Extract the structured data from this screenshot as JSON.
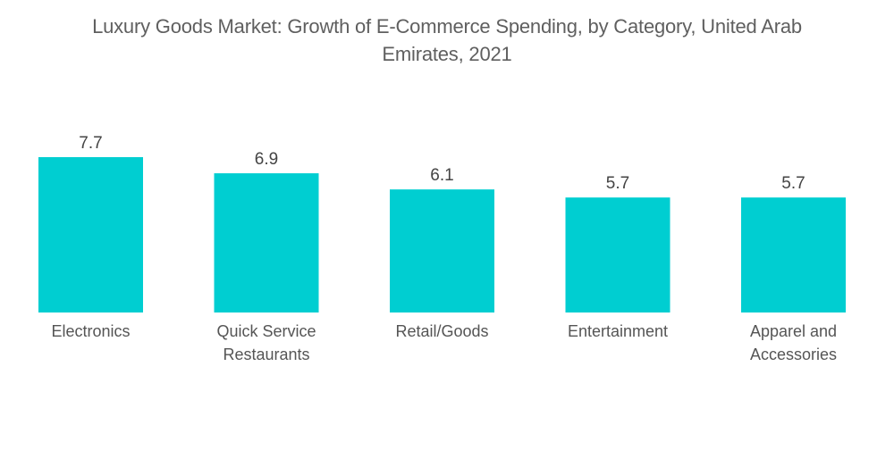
{
  "chart_data": {
    "type": "bar",
    "title": "Luxury Goods Market: Growth of E-Commerce Spending, by Category, United Arab Emirates, 2021",
    "title_lines": [
      "Luxury Goods Market: Growth of E-Commerce Spending, by Category, United Arab",
      "Emirates, 2021"
    ],
    "categories": [
      "Electronics",
      "Quick Service Restaurants",
      "Retail/Goods",
      "Entertainment",
      "Apparel and Accessories"
    ],
    "category_lines": [
      [
        "Electronics"
      ],
      [
        "Quick Service",
        "Restaurants"
      ],
      [
        "Retail/Goods"
      ],
      [
        "Entertainment"
      ],
      [
        "Apparel and",
        "Accessories"
      ]
    ],
    "values": [
      7.7,
      6.9,
      6.1,
      5.7,
      5.7
    ],
    "data_labels": [
      "7.7",
      "6.9",
      "6.1",
      "5.7",
      "5.7"
    ],
    "xlabel": "",
    "ylabel": "",
    "ylim": [
      0,
      7.7
    ],
    "grid": false,
    "legend": "none",
    "colors": {
      "bar": "#00CED1"
    }
  }
}
